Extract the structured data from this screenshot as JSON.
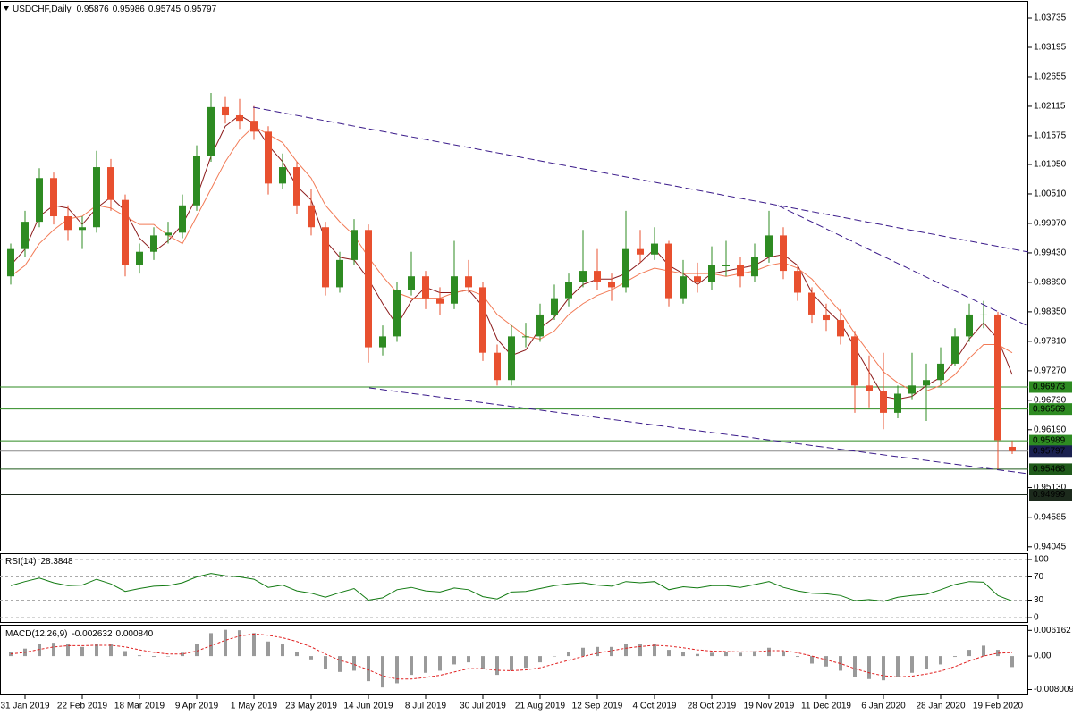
{
  "chart_data": [
    {
      "type": "candlestick",
      "title": "USDCHF,Daily",
      "categories": [
        null,
        "31 Jan 2019",
        null,
        null,
        null,
        "22 Feb 2019",
        null,
        null,
        null,
        "18 Mar 2019",
        null,
        null,
        null,
        "9 Apr 2019",
        null,
        null,
        null,
        "1 May 2019",
        null,
        null,
        null,
        "23 May 2019",
        null,
        null,
        null,
        "14 Jun 2019",
        null,
        null,
        null,
        "8 Jul 2019",
        null,
        null,
        null,
        "30 Jul 2019",
        null,
        null,
        null,
        "21 Aug 2019",
        null,
        null,
        null,
        "12 Sep 2019",
        null,
        null,
        null,
        "4 Oct 2019",
        null,
        null,
        null,
        "28 Oct 2019",
        null,
        null,
        null,
        "19 Nov 2019",
        null,
        null,
        null,
        "11 Dec 2019",
        null,
        null,
        null,
        "6 Jan 2020",
        null,
        null,
        null,
        "28 Jan 2020",
        null,
        null,
        null,
        "19 Feb 2020",
        null
      ],
      "open": [
        0.99,
        0.995,
        1.0,
        1.008,
        1.001,
        0.9985,
        0.999,
        1.01,
        1.004,
        0.992,
        0.9945,
        0.9975,
        0.998,
        1.003,
        1.012,
        1.021,
        1.0195,
        1.0185,
        1.0165,
        1.007,
        1.01,
        1.003,
        0.999,
        0.988,
        0.993,
        0.9985,
        0.977,
        0.979,
        0.9875,
        0.99,
        0.986,
        0.985,
        0.99,
        0.988,
        0.976,
        0.971,
        0.979,
        0.979,
        0.983,
        0.986,
        0.989,
        0.991,
        0.989,
        0.988,
        0.995,
        0.994,
        0.996,
        0.986,
        0.99,
        0.989,
        0.992,
        0.992,
        0.99,
        0.9935,
        0.9975,
        0.991,
        0.987,
        0.983,
        0.982,
        0.979,
        0.97,
        0.969,
        0.965,
        0.9685,
        0.97,
        0.971,
        0.974,
        0.979,
        0.983,
        0.983,
        0.95876
      ],
      "high": [
        0.996,
        1.002,
        1.0098,
        1.009,
        1.003,
        1.001,
        1.013,
        1.0115,
        1.005,
        0.996,
        0.999,
        1.0,
        1.005,
        1.014,
        1.0236,
        1.023,
        1.0225,
        1.0212,
        1.0175,
        1.0125,
        1.011,
        1.006,
        1.0,
        0.9945,
        1.0005,
        0.9995,
        0.981,
        0.989,
        0.9945,
        0.991,
        0.988,
        0.9965,
        0.993,
        0.989,
        0.9775,
        0.981,
        0.9815,
        0.985,
        0.9885,
        0.9905,
        0.9985,
        0.995,
        0.9905,
        1.002,
        0.9985,
        0.999,
        0.9965,
        0.993,
        0.9925,
        0.9955,
        0.9965,
        0.9935,
        0.996,
        1.002,
        0.999,
        0.992,
        0.988,
        0.985,
        0.984,
        0.98,
        0.9755,
        0.976,
        0.97,
        0.976,
        0.974,
        0.977,
        0.9805,
        0.985,
        0.9855,
        0.9835,
        0.95986
      ],
      "low": [
        0.9885,
        0.9935,
        0.999,
        0.9995,
        0.9965,
        0.995,
        0.998,
        1.002,
        0.99,
        0.9905,
        0.993,
        0.996,
        0.997,
        1.002,
        1.011,
        1.018,
        1.017,
        1.015,
        1.005,
        1.006,
        1.0015,
        0.9975,
        0.9865,
        0.987,
        0.992,
        0.9742,
        0.9755,
        0.978,
        0.9865,
        0.984,
        0.983,
        0.984,
        0.987,
        0.9745,
        0.97,
        0.97,
        0.977,
        0.978,
        0.982,
        0.9845,
        0.988,
        0.9875,
        0.9855,
        0.987,
        0.9925,
        0.993,
        0.9845,
        0.985,
        0.987,
        0.9875,
        0.99,
        0.988,
        0.989,
        0.9925,
        0.9895,
        0.9855,
        0.9815,
        0.98,
        0.9775,
        0.965,
        0.966,
        0.962,
        0.964,
        0.9675,
        0.9635,
        0.97,
        0.9735,
        0.978,
        0.9805,
        0.9547,
        0.95745
      ],
      "close": [
        0.995,
        1.0,
        1.008,
        1.001,
        0.9985,
        0.999,
        1.01,
        1.004,
        0.992,
        0.9945,
        0.9975,
        0.998,
        1.003,
        1.012,
        1.021,
        1.0195,
        1.0185,
        1.0165,
        1.007,
        1.01,
        1.003,
        0.999,
        0.988,
        0.993,
        0.9985,
        0.977,
        0.979,
        0.9875,
        0.99,
        0.986,
        0.985,
        0.99,
        0.988,
        0.976,
        0.971,
        0.979,
        0.979,
        0.983,
        0.986,
        0.989,
        0.991,
        0.989,
        0.988,
        0.995,
        0.994,
        0.996,
        0.986,
        0.99,
        0.989,
        0.992,
        0.992,
        0.99,
        0.9935,
        0.9975,
        0.991,
        0.987,
        0.983,
        0.982,
        0.979,
        0.97,
        0.969,
        0.965,
        0.9685,
        0.97,
        0.971,
        0.974,
        0.979,
        0.983,
        0.983,
        0.96,
        0.95797
      ],
      "up_color": "#2e8b22",
      "down_color": "#e8502f",
      "moving_averages": [
        {
          "color": "#8b1a1a",
          "values": [
            0.992,
            0.995,
            1.001,
            1.003,
            1.0025,
            0.9995,
            1.0025,
            1.0045,
            1.002,
            0.997,
            0.9945,
            0.9965,
            0.9995,
            1.0045,
            1.012,
            1.0175,
            1.0195,
            1.018,
            1.014,
            1.011,
            1.0065,
            1.004,
            0.9965,
            0.9935,
            0.993,
            0.9895,
            0.985,
            0.981,
            0.9855,
            0.988,
            0.987,
            0.987,
            0.9875,
            0.9845,
            0.9785,
            0.9755,
            0.9765,
            0.9805,
            0.9825,
            0.986,
            0.9885,
            0.9895,
            0.9895,
            0.9905,
            0.9925,
            0.995,
            0.992,
            0.9905,
            0.9885,
            0.9905,
            0.991,
            0.9915,
            0.992,
            0.9935,
            0.994,
            0.992,
            0.987,
            0.984,
            0.9815,
            0.977,
            0.9725,
            0.968,
            0.9675,
            0.968,
            0.97,
            0.9715,
            0.9745,
            0.9785,
            0.9815,
            0.9785,
            0.972
          ]
        },
        {
          "color": "#f27a55",
          "values": [
            0.99,
            0.992,
            0.996,
            0.9985,
            1.0005,
            1.001,
            1.003,
            1.0025,
            1.001,
            0.9995,
            0.9995,
            0.9975,
            0.996,
            1.001,
            1.006,
            1.011,
            1.015,
            1.0175,
            1.016,
            1.0145,
            1.011,
            1.008,
            1.003,
            1.0,
            0.9975,
            0.9935,
            0.99,
            0.987,
            0.986,
            0.986,
            0.986,
            0.987,
            0.9875,
            0.9865,
            0.983,
            0.981,
            0.979,
            0.9785,
            0.98,
            0.983,
            0.985,
            0.9865,
            0.9875,
            0.989,
            0.9905,
            0.9915,
            0.991,
            0.9905,
            0.9905,
            0.9905,
            0.99,
            0.9905,
            0.991,
            0.992,
            0.9925,
            0.9915,
            0.9895,
            0.9865,
            0.9835,
            0.9795,
            0.976,
            0.9725,
            0.9705,
            0.969,
            0.969,
            0.97,
            0.972,
            0.975,
            0.9775,
            0.9775,
            0.976
          ]
        }
      ],
      "levels": [
        {
          "value": 0.96973,
          "color": "#2e8b22"
        },
        {
          "value": 0.96569,
          "color": "#2e8b22"
        },
        {
          "value": 0.95989,
          "color": "#2e8b22"
        },
        {
          "value": 0.95468,
          "color": "#1f5a1a"
        },
        {
          "value": 0.94999,
          "color": "#1c2a1c"
        }
      ],
      "current_color": "#1a2050",
      "ylim": [
        0.9396,
        1.0403
      ],
      "yticks": [
        1.03735,
        1.03195,
        1.02655,
        1.02115,
        1.01575,
        {
          "value": 1.0105,
          "label": "1.01050"
        },
        {
          "value": 1.0051,
          "label": "1.00510"
        },
        {
          "value": 0.9997,
          "label": "0.99970"
        },
        {
          "value": 0.9943,
          "label": "0.99430"
        },
        {
          "value": 0.9889,
          "label": "0.98890"
        },
        {
          "value": 0.9835,
          "label": "0.98350"
        },
        {
          "value": 0.9781,
          "label": "0.97810"
        },
        {
          "value": 0.9727,
          "label": "0.97270"
        },
        {
          "value": 0.9673,
          "label": "0.96730"
        },
        {
          "value": 0.9619,
          "label": "0.96190"
        },
        {
          "value": 0.9513,
          "label": "0.95130"
        },
        0.94585,
        0.94045
      ]
    },
    {
      "type": "line",
      "title": "RSI(14)",
      "color": "#117a11",
      "values": [
        55,
        62,
        68,
        60,
        55,
        56,
        66,
        58,
        45,
        50,
        54,
        55,
        60,
        70,
        76,
        72,
        70,
        66,
        52,
        56,
        46,
        42,
        35,
        43,
        50,
        30,
        34,
        48,
        52,
        46,
        44,
        51,
        48,
        36,
        32,
        44,
        45,
        50,
        55,
        58,
        60,
        56,
        54,
        62,
        60,
        62,
        48,
        53,
        51,
        55,
        55,
        52,
        57,
        62,
        52,
        46,
        42,
        41,
        38,
        29,
        31,
        28,
        35,
        38,
        40,
        48,
        57,
        62,
        61,
        38,
        28.3848
      ],
      "ylim": [
        -9.2,
        109.2
      ],
      "yticks": [
        100,
        70,
        30,
        0
      ]
    },
    {
      "type": "macd",
      "title": "MACD(12,26,9)",
      "series": [
        {
          "color": "#9a9a9a",
          "values": [
            0.001,
            0.0018,
            0.003,
            0.0032,
            0.0028,
            0.0022,
            0.0028,
            0.0028,
            0.0012,
            0.0002,
            -0.0002,
            -0.0001,
            0.0008,
            0.003,
            0.0055,
            0.0063,
            0.0062,
            0.0055,
            0.0035,
            0.0028,
            0.001,
            -0.0008,
            -0.003,
            -0.0038,
            -0.0035,
            -0.006,
            -0.0075,
            -0.0065,
            -0.0045,
            -0.004,
            -0.0035,
            -0.002,
            -0.0015,
            -0.003,
            -0.0045,
            -0.0035,
            -0.0028,
            -0.0015,
            0.0,
            0.001,
            0.002,
            0.0022,
            0.0022,
            0.003,
            0.003,
            0.003,
            0.0015,
            0.001,
            0.0005,
            0.0008,
            0.001,
            0.0008,
            0.0012,
            0.002,
            0.0012,
            -0.0002,
            -0.0018,
            -0.0025,
            -0.0035,
            -0.005,
            -0.0055,
            -0.0058,
            -0.005,
            -0.004,
            -0.003,
            -0.002,
            -0.0002,
            0.0015,
            0.0025,
            0.0015,
            -0.002632
          ]
        },
        {
          "color": "#e02020",
          "header_label": "0.000840",
          "values": [
            0.0005,
            0.0009,
            0.0016,
            0.0022,
            0.0025,
            0.0025,
            0.0026,
            0.0026,
            0.0022,
            0.0015,
            0.0009,
            0.0005,
            0.0005,
            0.0012,
            0.0025,
            0.0038,
            0.0048,
            0.0053,
            0.005,
            0.0044,
            0.0035,
            0.0022,
            0.0005,
            -0.001,
            -0.002,
            -0.0033,
            -0.0047,
            -0.0055,
            -0.0055,
            -0.0051,
            -0.0046,
            -0.0038,
            -0.003,
            -0.003,
            -0.0034,
            -0.0035,
            -0.0033,
            -0.0028,
            -0.0019,
            -0.001,
            -0.0001,
            0.0007,
            0.0013,
            0.0019,
            0.0023,
            0.0026,
            0.0024,
            0.002,
            0.0015,
            0.0012,
            0.0011,
            0.001,
            0.001,
            0.0013,
            0.0013,
            0.0008,
            0.0,
            -0.0009,
            -0.0018,
            -0.003,
            -0.004,
            -0.0047,
            -0.005,
            -0.0048,
            -0.0043,
            -0.0036,
            -0.0025,
            -0.0012,
            0.0,
            0.0007,
            0.00084
          ]
        }
      ],
      "ylim": [
        -0.0094,
        0.0073
      ],
      "yticks": [
        0.006162,
        {
          "value": 0,
          "label": "0.00"
        },
        -0.008009
      ]
    }
  ]
}
